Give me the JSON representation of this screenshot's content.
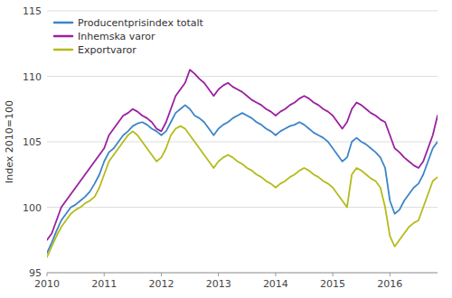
{
  "chart_data": {
    "type": "line",
    "title": "",
    "ylabel": "Index 2010=100",
    "categories": [
      "2010",
      null,
      null,
      null,
      null,
      null,
      null,
      null,
      null,
      null,
      null,
      null,
      "2011",
      null,
      null,
      null,
      null,
      null,
      null,
      null,
      null,
      null,
      null,
      null,
      "2012",
      null,
      null,
      null,
      null,
      null,
      null,
      null,
      null,
      null,
      null,
      null,
      "2013",
      null,
      null,
      null,
      null,
      null,
      null,
      null,
      null,
      null,
      null,
      null,
      "2014",
      null,
      null,
      null,
      null,
      null,
      null,
      null,
      null,
      null,
      null,
      null,
      "2015",
      null,
      null,
      null,
      null,
      null,
      null,
      null,
      null,
      null,
      null,
      null,
      "2016",
      null,
      null,
      null,
      null,
      null,
      null,
      null,
      null,
      null,
      null
    ],
    "series": [
      {
        "name": "Producentprisindex totalt",
        "color": "#3d85c8",
        "values": [
          96.5,
          97.3,
          98.2,
          99.0,
          99.5,
          100.0,
          100.2,
          100.5,
          100.8,
          101.2,
          101.8,
          102.5,
          103.5,
          104.2,
          104.5,
          105.0,
          105.5,
          105.8,
          106.2,
          106.4,
          106.5,
          106.3,
          106.0,
          105.8,
          105.5,
          105.8,
          106.5,
          107.2,
          107.5,
          107.8,
          107.5,
          107.0,
          106.8,
          106.5,
          106.0,
          105.5,
          106.0,
          106.3,
          106.5,
          106.8,
          107.0,
          107.2,
          107.0,
          106.8,
          106.5,
          106.3,
          106.0,
          105.8,
          105.5,
          105.8,
          106.0,
          106.2,
          106.3,
          106.5,
          106.3,
          106.0,
          105.7,
          105.5,
          105.3,
          105.0,
          104.5,
          104.0,
          103.5,
          103.8,
          105.0,
          105.3,
          105.0,
          104.8,
          104.5,
          104.2,
          103.8,
          103.0,
          100.5,
          99.5,
          99.8,
          100.5,
          101.0,
          101.5,
          101.8,
          102.5,
          103.5,
          104.5,
          105.0
        ]
      },
      {
        "name": "Inhemska varor",
        "color": "#9b1fa1",
        "values": [
          97.5,
          98.0,
          99.0,
          100.0,
          100.5,
          101.0,
          101.5,
          102.0,
          102.5,
          103.0,
          103.5,
          104.0,
          104.5,
          105.5,
          106.0,
          106.5,
          107.0,
          107.2,
          107.5,
          107.3,
          107.0,
          106.8,
          106.5,
          106.0,
          105.8,
          106.5,
          107.5,
          108.5,
          109.0,
          109.5,
          110.5,
          110.2,
          109.8,
          109.5,
          109.0,
          108.5,
          109.0,
          109.3,
          109.5,
          109.2,
          109.0,
          108.8,
          108.5,
          108.2,
          108.0,
          107.8,
          107.5,
          107.3,
          107.0,
          107.3,
          107.5,
          107.8,
          108.0,
          108.3,
          108.5,
          108.3,
          108.0,
          107.8,
          107.5,
          107.3,
          107.0,
          106.5,
          106.0,
          106.5,
          107.5,
          108.0,
          107.8,
          107.5,
          107.2,
          107.0,
          106.7,
          106.5,
          105.5,
          104.5,
          104.2,
          103.8,
          103.5,
          103.2,
          103.0,
          103.5,
          104.5,
          105.5,
          107.0
        ]
      },
      {
        "name": "Exportvaror",
        "color": "#b5bb1a",
        "values": [
          96.2,
          97.0,
          97.8,
          98.5,
          99.0,
          99.5,
          99.8,
          100.0,
          100.3,
          100.5,
          100.8,
          101.5,
          102.5,
          103.5,
          104.0,
          104.5,
          105.0,
          105.5,
          105.8,
          105.5,
          105.0,
          104.5,
          104.0,
          103.5,
          103.8,
          104.5,
          105.5,
          106.0,
          106.2,
          106.0,
          105.5,
          105.0,
          104.5,
          104.0,
          103.5,
          103.0,
          103.5,
          103.8,
          104.0,
          103.8,
          103.5,
          103.3,
          103.0,
          102.8,
          102.5,
          102.3,
          102.0,
          101.8,
          101.5,
          101.8,
          102.0,
          102.3,
          102.5,
          102.8,
          103.0,
          102.8,
          102.5,
          102.3,
          102.0,
          101.8,
          101.5,
          101.0,
          100.5,
          100.0,
          102.5,
          103.0,
          102.8,
          102.5,
          102.2,
          102.0,
          101.5,
          100.0,
          97.8,
          97.0,
          97.5,
          98.0,
          98.5,
          98.8,
          99.0,
          100.0,
          101.0,
          102.0,
          102.3
        ]
      }
    ],
    "ylim": [
      95,
      115
    ],
    "yticks": [
      95,
      100,
      105,
      110,
      115
    ],
    "grid": true,
    "legend": "top-left"
  }
}
